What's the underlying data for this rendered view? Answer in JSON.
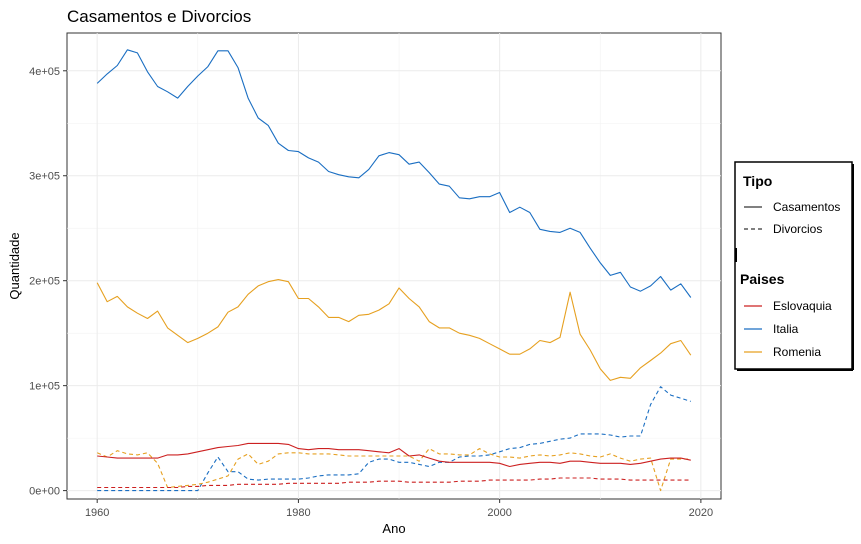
{
  "chart_data": {
    "type": "line",
    "title": "Casamentos e Divorcios",
    "xlabel": "Ano",
    "ylabel": "Quantidade",
    "xlim": [
      1957,
      2022
    ],
    "ylim": [
      -8000,
      436000
    ],
    "x_ticks": [
      1960,
      1980,
      2000,
      2020
    ],
    "x_tick_labels": [
      "1960",
      "1980",
      "2000",
      "2020"
    ],
    "y_ticks": [
      0,
      100000,
      200000,
      300000,
      400000
    ],
    "y_tick_labels": [
      "0e+00",
      "1e+05",
      "2e+05",
      "3e+05",
      "4e+05"
    ],
    "grid": true,
    "legend_position": "right",
    "linetype_legend": {
      "title": "Tipo",
      "entries": [
        {
          "label": "Casamentos",
          "dash": "solid"
        },
        {
          "label": "Divorcios",
          "dash": "dashed"
        }
      ]
    },
    "color_legend": {
      "title": "Paises",
      "entries": [
        {
          "label": "Eslovaquia",
          "color": "#cc2020"
        },
        {
          "label": "Italia",
          "color": "#1a6ec2"
        },
        {
          "label": "Romenia",
          "color": "#e6a020"
        }
      ]
    },
    "series": [
      {
        "country": "Italia",
        "type": "Casamentos",
        "color": "#1a6ec2",
        "dash": "solid",
        "x": [
          1960,
          1961,
          1962,
          1963,
          1964,
          1965,
          1966,
          1967,
          1968,
          1969,
          1970,
          1971,
          1972,
          1973,
          1974,
          1975,
          1976,
          1977,
          1978,
          1979,
          1980,
          1981,
          1982,
          1983,
          1984,
          1985,
          1986,
          1987,
          1988,
          1989,
          1990,
          1991,
          1992,
          1993,
          1994,
          1995,
          1996,
          1997,
          1998,
          1999,
          2000,
          2001,
          2002,
          2003,
          2004,
          2005,
          2006,
          2007,
          2008,
          2009,
          2010,
          2011,
          2012,
          2013,
          2014,
          2015,
          2016,
          2017,
          2018,
          2019
        ],
        "y": [
          388000,
          397000,
          405000,
          420000,
          417000,
          399000,
          385000,
          380000,
          374000,
          385000,
          395000,
          404000,
          419000,
          419000,
          403000,
          374000,
          355000,
          348000,
          331000,
          324000,
          323000,
          317000,
          313000,
          304000,
          301000,
          299000,
          298000,
          306000,
          319000,
          322000,
          320000,
          311000,
          313000,
          303000,
          292000,
          290000,
          279000,
          278000,
          280000,
          280000,
          284000,
          265000,
          270000,
          265000,
          249000,
          247000,
          246000,
          250000,
          246000,
          231000,
          217000,
          205000,
          208000,
          194000,
          190000,
          195000,
          204000,
          191000,
          197000,
          184000
        ]
      },
      {
        "country": "Italia",
        "type": "Divorcios",
        "color": "#1a6ec2",
        "dash": "dashed",
        "x": [
          1960,
          1961,
          1962,
          1963,
          1964,
          1965,
          1966,
          1967,
          1968,
          1969,
          1970,
          1971,
          1972,
          1973,
          1974,
          1975,
          1976,
          1977,
          1978,
          1979,
          1980,
          1981,
          1982,
          1983,
          1984,
          1985,
          1986,
          1987,
          1988,
          1989,
          1990,
          1991,
          1992,
          1993,
          1994,
          1995,
          1996,
          1997,
          1998,
          1999,
          2000,
          2001,
          2002,
          2003,
          2004,
          2005,
          2006,
          2007,
          2008,
          2009,
          2010,
          2011,
          2012,
          2013,
          2014,
          2015,
          2016,
          2017,
          2018,
          2019
        ],
        "y": [
          0,
          0,
          0,
          0,
          0,
          0,
          0,
          0,
          0,
          0,
          0,
          17000,
          32000,
          18000,
          18000,
          11000,
          10000,
          11000,
          11000,
          11000,
          11000,
          12000,
          14000,
          15000,
          15000,
          15000,
          16000,
          27000,
          30000,
          30000,
          27000,
          27000,
          25000,
          23000,
          27000,
          27000,
          32000,
          33000,
          33000,
          34000,
          37000,
          40000,
          41000,
          44000,
          45000,
          47000,
          49000,
          50000,
          54000,
          54000,
          54000,
          53000,
          51000,
          52000,
          52000,
          82000,
          99000,
          91000,
          88000,
          85000
        ]
      },
      {
        "country": "Romenia",
        "type": "Casamentos",
        "color": "#e6a020",
        "dash": "solid",
        "x": [
          1960,
          1961,
          1962,
          1963,
          1964,
          1965,
          1966,
          1967,
          1968,
          1969,
          1970,
          1971,
          1972,
          1973,
          1974,
          1975,
          1976,
          1977,
          1978,
          1979,
          1980,
          1981,
          1982,
          1983,
          1984,
          1985,
          1986,
          1987,
          1988,
          1989,
          1990,
          1991,
          1992,
          1993,
          1994,
          1995,
          1996,
          1997,
          1998,
          1999,
          2000,
          2001,
          2002,
          2003,
          2004,
          2005,
          2006,
          2007,
          2008,
          2009,
          2010,
          2011,
          2012,
          2013,
          2014,
          2015,
          2016,
          2017,
          2018,
          2019
        ],
        "y": [
          198000,
          180000,
          185000,
          175000,
          169000,
          164000,
          171000,
          155000,
          148000,
          141000,
          145000,
          150000,
          156000,
          170000,
          175000,
          187000,
          195000,
          199000,
          201000,
          199000,
          183000,
          183000,
          175000,
          165000,
          165000,
          161000,
          167000,
          168000,
          172000,
          178000,
          193000,
          183000,
          175000,
          161000,
          155000,
          155000,
          150000,
          148000,
          145000,
          140000,
          135000,
          130000,
          130000,
          135000,
          143000,
          141000,
          146000,
          189000,
          149000,
          134000,
          116000,
          105000,
          108000,
          107000,
          117000,
          124000,
          131000,
          140000,
          143000,
          129000
        ]
      },
      {
        "country": "Romenia",
        "type": "Divorcios",
        "color": "#e6a020",
        "dash": "dashed",
        "x": [
          1960,
          1961,
          1962,
          1963,
          1964,
          1965,
          1966,
          1967,
          1968,
          1969,
          1970,
          1971,
          1972,
          1973,
          1974,
          1975,
          1976,
          1977,
          1978,
          1979,
          1980,
          1981,
          1982,
          1983,
          1984,
          1985,
          1986,
          1987,
          1988,
          1989,
          1990,
          1991,
          1992,
          1993,
          1994,
          1995,
          1996,
          1997,
          1998,
          1999,
          2000,
          2001,
          2002,
          2003,
          2004,
          2005,
          2006,
          2007,
          2008,
          2009,
          2010,
          2011,
          2012,
          2013,
          2014,
          2015,
          2016,
          2017,
          2018,
          2019
        ],
        "y": [
          36000,
          32000,
          38000,
          35000,
          34000,
          36000,
          26000,
          3000,
          4000,
          5000,
          6000,
          8000,
          11000,
          14000,
          30000,
          35000,
          25000,
          28000,
          35000,
          36000,
          36000,
          35000,
          35000,
          35000,
          34000,
          33000,
          33000,
          33000,
          33000,
          33000,
          33000,
          33000,
          28000,
          40000,
          35000,
          35000,
          34000,
          34000,
          40000,
          35000,
          32000,
          32000,
          31000,
          33000,
          34000,
          33000,
          34000,
          36000,
          35000,
          33000,
          32000,
          35000,
          31000,
          28000,
          30000,
          31000,
          0,
          30000,
          30000,
          30000
        ]
      },
      {
        "country": "Eslovaquia",
        "type": "Casamentos",
        "color": "#cc2020",
        "dash": "solid",
        "x": [
          1960,
          1961,
          1962,
          1963,
          1964,
          1965,
          1966,
          1967,
          1968,
          1969,
          1970,
          1971,
          1972,
          1973,
          1974,
          1975,
          1976,
          1977,
          1978,
          1979,
          1980,
          1981,
          1982,
          1983,
          1984,
          1985,
          1986,
          1987,
          1988,
          1989,
          1990,
          1991,
          1992,
          1993,
          1994,
          1995,
          1996,
          1997,
          1998,
          1999,
          2000,
          2001,
          2002,
          2003,
          2004,
          2005,
          2006,
          2007,
          2008,
          2009,
          2010,
          2011,
          2012,
          2013,
          2014,
          2015,
          2016,
          2017,
          2018,
          2019
        ],
        "y": [
          33000,
          32000,
          31000,
          31000,
          31000,
          31000,
          31000,
          34000,
          34000,
          35000,
          37000,
          39000,
          41000,
          42000,
          43000,
          45000,
          45000,
          45000,
          45000,
          44000,
          40000,
          39000,
          40000,
          40000,
          39000,
          39000,
          39000,
          38000,
          37000,
          36000,
          40000,
          33000,
          34000,
          31000,
          28000,
          27000,
          27000,
          27000,
          27000,
          27000,
          26000,
          23000,
          25000,
          26000,
          27000,
          27000,
          26000,
          28000,
          28000,
          27000,
          26000,
          26000,
          26000,
          25000,
          26000,
          28000,
          30000,
          31000,
          31000,
          29000
        ]
      },
      {
        "country": "Eslovaquia",
        "type": "Divorcios",
        "color": "#cc2020",
        "dash": "dashed",
        "x": [
          1960,
          1961,
          1962,
          1963,
          1964,
          1965,
          1966,
          1967,
          1968,
          1969,
          1970,
          1971,
          1972,
          1973,
          1974,
          1975,
          1976,
          1977,
          1978,
          1979,
          1980,
          1981,
          1982,
          1983,
          1984,
          1985,
          1986,
          1987,
          1988,
          1989,
          1990,
          1991,
          1992,
          1993,
          1994,
          1995,
          1996,
          1997,
          1998,
          1999,
          2000,
          2001,
          2002,
          2003,
          2004,
          2005,
          2006,
          2007,
          2008,
          2009,
          2010,
          2011,
          2012,
          2013,
          2014,
          2015,
          2016,
          2017,
          2018,
          2019
        ],
        "y": [
          3000,
          3000,
          3000,
          3000,
          3000,
          3000,
          3000,
          3000,
          3000,
          4000,
          4000,
          5000,
          5000,
          5000,
          6000,
          6000,
          6000,
          6000,
          6000,
          7000,
          7000,
          7000,
          7000,
          7000,
          7000,
          8000,
          8000,
          8000,
          9000,
          9000,
          9000,
          8000,
          8000,
          8000,
          8000,
          8000,
          9000,
          9000,
          9000,
          10000,
          10000,
          10000,
          10000,
          10000,
          11000,
          11000,
          12000,
          12000,
          12000,
          12000,
          11000,
          11000,
          11000,
          10000,
          10000,
          10000,
          10000,
          10000,
          10000,
          10000
        ]
      }
    ]
  }
}
